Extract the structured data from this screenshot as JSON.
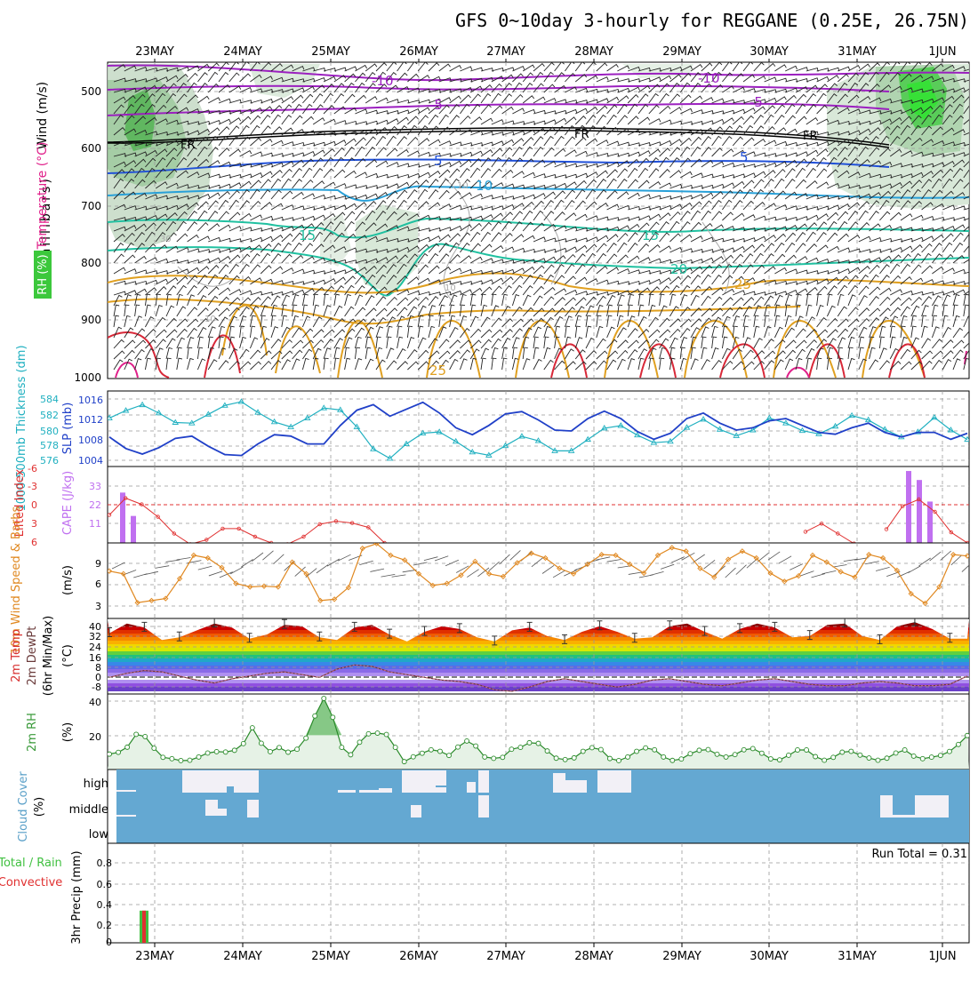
{
  "title": "GFS 0~10day 3-hourly for REGGANE (0.25E, 26.75N)",
  "colors": {
    "rh_green": "#3cc83c",
    "temp_purple": "#9b1fbf",
    "temp_blue": "#2050d8",
    "temp_cyan": "#28a0d8",
    "temp_teal": "#20c0a0",
    "temp_orange": "#e0a020",
    "temp_red": "#d82838",
    "thickness": "#20b0c0",
    "slp": "#2040c8",
    "cape": "#c070f0",
    "lifted": "#e03030",
    "wind": "#e08820",
    "cloud": "#64a8d2",
    "rh2m": "#3a9a3a",
    "precip_total": "#40c040",
    "precip_conv": "#e03030"
  },
  "dates": [
    "23MAY",
    "24MAY",
    "25MAY",
    "26MAY",
    "27MAY",
    "28MAY",
    "29MAY",
    "30MAY",
    "31MAY",
    "1JUN"
  ],
  "panels": {
    "upper": {
      "ylabel_rh": "RH (%)",
      "ylabel_temp": "Temperature (°C)",
      "ylabel_wind": "Wind (m/s)",
      "ylabel_p": "(millibars)",
      "ticks": [
        "500",
        "600",
        "700",
        "800",
        "900",
        "1000"
      ],
      "contour_labels": [
        "-10",
        "-10",
        "-5",
        "-5",
        "FR",
        "FR",
        "FR",
        "5",
        "5",
        "10",
        "10",
        "15",
        "15",
        "20",
        "25",
        "25",
        "10",
        "10",
        "30"
      ]
    },
    "pressure": {
      "ylabel_left": "1000-500mb Thickness (dm)",
      "ylabel_right": "SLP (mb)",
      "ticks_left": [
        "584",
        "582",
        "580",
        "578",
        "576"
      ],
      "ticks_right": [
        "1016",
        "1012",
        "1008",
        "1004"
      ]
    },
    "stability": {
      "ylabel_left": "Lifted Index",
      "ylabel_right": "CAPE (J/kg)",
      "ticks_left": [
        "-6",
        "-3",
        "0",
        "3",
        "6"
      ],
      "ticks_right": [
        "33",
        "22",
        "11"
      ]
    },
    "wind10": {
      "ylabel": "10m Wind Speed & Barbs",
      "unit": "(m/s)",
      "ticks": [
        "9",
        "6",
        "3"
      ]
    },
    "temp2m": {
      "ylabel1": "2m Temp",
      "ylabel2": "2m DewPt",
      "ylabel3": "(6hr Min/Max)",
      "unit": "(°C)",
      "ticks": [
        "40",
        "32",
        "24",
        "16",
        "8",
        "0",
        "-8"
      ]
    },
    "rh2m": {
      "ylabel": "2m RH",
      "unit": "(%)",
      "ticks": [
        "40",
        "20"
      ]
    },
    "cloud": {
      "ylabel": "Cloud Cover",
      "unit": "(%)",
      "levels": [
        "high",
        "middle",
        "low"
      ]
    },
    "precip": {
      "ylabel_total": "Total / Rain",
      "ylabel_conv": "Convective",
      "ylabel": "3hr Precip (mm)",
      "ticks": [
        "0.8",
        "0.6",
        "0.4",
        "0.2",
        "0"
      ],
      "run_total": "Run Total = 0.31"
    }
  },
  "chart_data": [
    {
      "type": "line",
      "title": "1000-500mb Thickness (dm)",
      "ylim": [
        575,
        586
      ],
      "series": [
        {
          "name": "1000-500mb Thickness (dm)",
          "values": [
            582.4,
            583.6,
            584.5,
            583.2,
            581.7,
            581.6,
            583.0,
            584.4,
            585.0,
            583.3,
            581.8,
            581.0,
            582.4,
            584.0,
            583.7,
            581.0,
            577.5,
            576.0,
            578.3,
            580.0,
            580.2,
            578.7,
            577.0,
            576.5,
            578.0,
            579.5,
            578.8,
            577.2,
            577.2,
            579.0,
            580.8,
            581.2,
            579.7,
            578.5,
            578.7,
            580.9,
            582.2,
            580.6,
            579.6,
            580.5,
            582.4,
            581.6,
            580.4,
            579.9,
            581.1,
            582.8,
            582.1,
            580.6,
            579.4,
            580.2,
            582.5,
            580.5,
            579.0
          ]
        }
      ]
    },
    {
      "type": "line",
      "title": "SLP (mb)",
      "ylim": [
        1003,
        1018
      ],
      "series": [
        {
          "name": "SLP (mb)",
          "values": [
            1009.0,
            1006.5,
            1005.3,
            1006.7,
            1008.7,
            1009.2,
            1007.0,
            1005.2,
            1005.0,
            1007.5,
            1009.5,
            1009.2,
            1007.5,
            1007.5,
            1011.5,
            1014.8,
            1016.0,
            1013.5,
            1015.0,
            1016.5,
            1014.2,
            1011.0,
            1009.5,
            1011.5,
            1014.0,
            1014.5,
            1012.7,
            1010.5,
            1010.3,
            1013.0,
            1014.6,
            1013.0,
            1010.2,
            1008.5,
            1009.8,
            1013.0,
            1014.2,
            1012.0,
            1010.5,
            1011.0,
            1012.5,
            1013.0,
            1011.5,
            1010.0,
            1009.6,
            1011.0,
            1012.0,
            1010.0,
            1009.0,
            1010.0,
            1010.0,
            1008.5,
            1009.8
          ]
        }
      ]
    },
    {
      "type": "line",
      "title": "Lifted Index",
      "ylim": [
        -6,
        6
      ],
      "series": [
        {
          "name": "Lifted Index",
          "values": [
            1.5,
            -1.2,
            -0.2,
            1.8,
            4.5,
            6.2,
            5.5,
            3.7,
            3.7,
            5.0,
            6.0,
            6.2,
            5.0,
            3.0,
            2.5,
            2.8,
            3.5,
            6.0,
            null,
            null,
            null,
            null,
            null,
            null,
            null,
            null,
            null,
            null,
            null,
            null,
            null,
            null,
            null,
            null,
            null,
            null,
            null,
            null,
            null,
            null,
            null,
            null,
            null,
            4.2,
            2.9,
            4.5,
            6.1,
            null,
            3.8,
            0.1,
            -1.0,
            1.0,
            4.3,
            6.0
          ]
        }
      ]
    },
    {
      "type": "bar",
      "title": "CAPE (J/kg)",
      "ylim": [
        0,
        42
      ],
      "categories": [
        "22MAY21",
        "22MAY24",
        "31MAY15",
        "31MAY18",
        "31MAY21"
      ],
      "series": [
        {
          "name": "CAPE (J/kg)",
          "values": [
            28,
            15,
            40,
            35,
            23
          ]
        }
      ]
    },
    {
      "type": "line",
      "title": "10m Wind Speed & Barbs",
      "ylim": [
        1,
        11
      ],
      "series": [
        {
          "name": "10m Wind Speed (m/s)",
          "values": [
            6.9,
            6.5,
            2.3,
            2.6,
            2.9,
            5.8,
            9.2,
            8.8,
            7.4,
            5.1,
            4.6,
            4.7,
            4.6,
            8.2,
            6.5,
            2.6,
            2.8,
            4.5,
            10.2,
            10.9,
            9.2,
            8.5,
            6.5,
            4.8,
            5.1,
            6.3,
            8.3,
            6.5,
            6.1,
            8.1,
            9.5,
            8.8,
            7.3,
            6.5,
            7.9,
            9.3,
            9.2,
            7.9,
            6.6,
            9.2,
            10.3,
            9.8,
            7.3,
            6.0,
            8.6,
            9.8,
            8.8,
            6.6,
            5.4,
            6.2,
            9.2,
            8.2,
            6.8,
            6.0,
            9.3,
            8.8,
            7.0,
            3.6,
            2.2,
            4.6,
            9.3,
            9.1
          ]
        }
      ]
    },
    {
      "type": "line",
      "title": "2m Temp / 2m DewPt",
      "ylim": [
        -10,
        44
      ],
      "series": [
        {
          "name": "2m Temp",
          "values": [
            34,
            41,
            38,
            29,
            31,
            36,
            41,
            38,
            30,
            33,
            40,
            39,
            31,
            29,
            38,
            40,
            33,
            28,
            35,
            39,
            37,
            31,
            28,
            36,
            38,
            32,
            29,
            35,
            39,
            35,
            30,
            31,
            39,
            41,
            35,
            30,
            37,
            41,
            38,
            31,
            32,
            40,
            41,
            32,
            29,
            39,
            42,
            37,
            30,
            30
          ]
        },
        {
          "name": "2m DewPt",
          "values": [
            2,
            5,
            7,
            6,
            3,
            0,
            -2,
            1,
            3,
            5,
            6,
            4,
            2,
            8,
            11,
            10,
            6,
            4,
            2,
            0,
            -1,
            -3,
            -7,
            -8,
            -5,
            -1,
            1,
            -1,
            -3,
            -5,
            -3,
            0,
            1,
            -1,
            -3,
            -4,
            -2,
            0,
            1,
            -1,
            -3,
            -4,
            -4,
            -2,
            -1,
            -2,
            -4,
            -4,
            -3,
            3
          ]
        }
      ]
    },
    {
      "type": "area",
      "title": "2m RH",
      "ylim": [
        0,
        44
      ],
      "series": [
        {
          "name": "2m RH (%)",
          "values": [
            9,
            10,
            13,
            20.5,
            19.2,
            12.4,
            7.1,
            6.3,
            5.2,
            5.4,
            7.3,
            9.6,
            10.4,
            10.2,
            11.2,
            15.1,
            24.3,
            15.3,
            10.4,
            12.8,
            10.1,
            11.8,
            18.3,
            31.2,
            41.4,
            30.4,
            12.9,
            8.6,
            15.9,
            20.8,
            21.2,
            20.4,
            12.9,
            4.6,
            7.4,
            9.5,
            11.5,
            10.6,
            8.2,
            13.1,
            16.6,
            13.7,
            7.3,
            6.5,
            7.1,
            11.8,
            12.9,
            15.6,
            15.2,
            10.8,
            6.6,
            5.8,
            6.8,
            10.6,
            12.7,
            11.6,
            6.4,
            5.2,
            7.3,
            10.6,
            12.6,
            11.5,
            7.3,
            5.3,
            6.1,
            9.2,
            11.2,
            11.6,
            8.9,
            7.3,
            8.7,
            11.5,
            12.2,
            9.5,
            6.2,
            5.6,
            8.3,
            11.4,
            11.4,
            7.5,
            5.4,
            7.1,
            10.1,
            10.6,
            8.4,
            6.7,
            5.4,
            6.6,
            9.6,
            11.4,
            7.8,
            6.3,
            7.2,
            8.2,
            10.5,
            14.6,
            19.8
          ]
        }
      ]
    },
    {
      "type": "bar",
      "title": "3hr Precip (mm)",
      "ylim": [
        0,
        0.96
      ],
      "categories": [
        "22MAY21"
      ],
      "series": [
        {
          "name": "Total / Rain",
          "values": [
            0.31
          ]
        },
        {
          "name": "Convective",
          "values": [
            0.31
          ]
        }
      ]
    }
  ]
}
